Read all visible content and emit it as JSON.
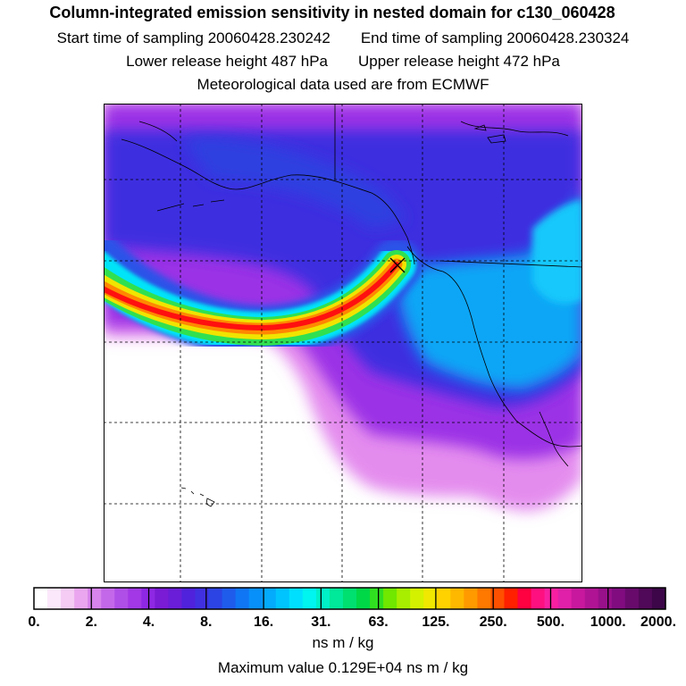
{
  "header": {
    "title": "Column-integrated emission sensitivity in nested domain for c130_060428",
    "start_label": "Start time of sampling 20060428.230242",
    "end_label": "End time of sampling 20060428.230324",
    "lower_label": "Lower release height  487 hPa",
    "upper_label": "Upper release height  472 hPa",
    "met_label": "Meteorological data used are from ECMWF"
  },
  "map": {
    "release_marker": "release-point-x",
    "colors": {
      "background": "#ffffff",
      "low": "#7a1bd6",
      "mid": "#2a3fe0",
      "high": "#00c8ff",
      "plume_peak": "#ff0000"
    }
  },
  "colorbar": {
    "tick_labels": [
      "0.",
      "2.",
      "4.",
      "8.",
      "16.",
      "31.",
      "63.",
      "125.",
      "250.",
      "500.",
      "1000.",
      "2000."
    ],
    "colors": [
      "#ffffff",
      "#fbe8fb",
      "#f4ccf4",
      "#eaa6ee",
      "#d784ec",
      "#c468ea",
      "#b04ee8",
      "#a238e6",
      "#8f28e4",
      "#7a1bd6",
      "#6a1ed8",
      "#5022dc",
      "#4030e0",
      "#2d44e4",
      "#1f5cec",
      "#1076f4",
      "#0890fa",
      "#04aafc",
      "#00c4fe",
      "#00e0fe",
      "#00f4f0",
      "#00f0c8",
      "#00e89a",
      "#00e070",
      "#00d848",
      "#30e020",
      "#70e800",
      "#a8ee00",
      "#d4f200",
      "#f0e800",
      "#ffd200",
      "#ffb800",
      "#ff9a00",
      "#ff7800",
      "#ff5000",
      "#ff2000",
      "#ff0040",
      "#ff1080",
      "#f820a0",
      "#e020a8",
      "#c8189e",
      "#b01494",
      "#98108a",
      "#800c80",
      "#680a6c",
      "#500858",
      "#3c0648"
    ],
    "units": "ns m / kg"
  },
  "footer": {
    "max_value": "Maximum value  0.129E+04 ns m / kg"
  }
}
